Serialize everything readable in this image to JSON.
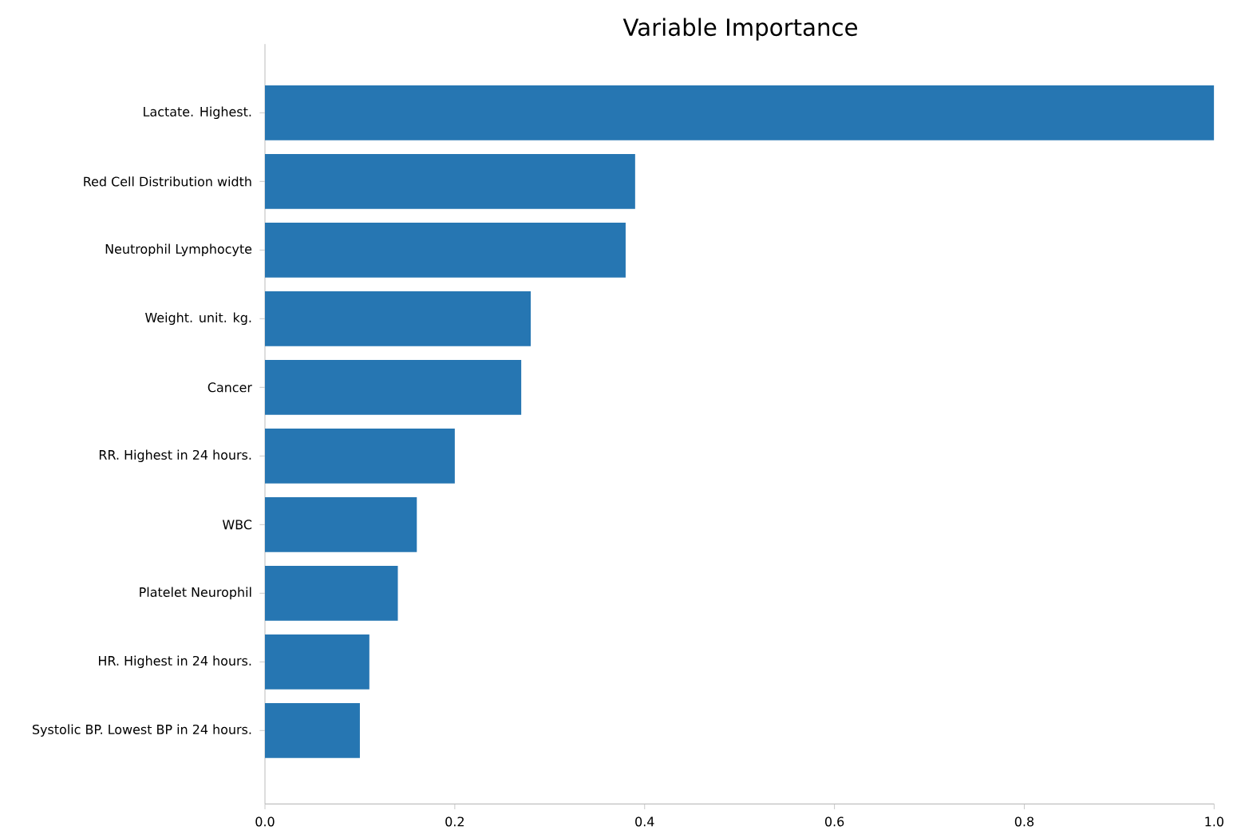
{
  "chart_data": {
    "type": "bar",
    "orientation": "horizontal",
    "title": "Variable Importance",
    "categories": [
      "Lactate. Highest.",
      "Red Cell Distribution width",
      "Neutrophil Lymphocyte",
      "Weight. unit. kg.",
      "Cancer",
      "RR. Highest in 24 hours.",
      "WBC",
      "Platelet Neurophil",
      "HR. Highest in 24 hours.",
      "Systolic BP. Lowest BP in 24 hours."
    ],
    "values": [
      1.0,
      0.39,
      0.38,
      0.28,
      0.27,
      0.2,
      0.16,
      0.14,
      0.11,
      0.1
    ],
    "color": "#2676b2",
    "xlim": [
      0,
      1.0
    ],
    "xticks": [
      {
        "value": 0,
        "label": "0.0"
      },
      {
        "value": 0.2,
        "label": "0.2"
      },
      {
        "value": 0.4,
        "label": "0.4"
      },
      {
        "value": 0.6,
        "label": "0.6"
      },
      {
        "value": 0.8,
        "label": "0.8"
      },
      {
        "value": 1.0,
        "label": "1.0"
      }
    ],
    "grid": false
  }
}
